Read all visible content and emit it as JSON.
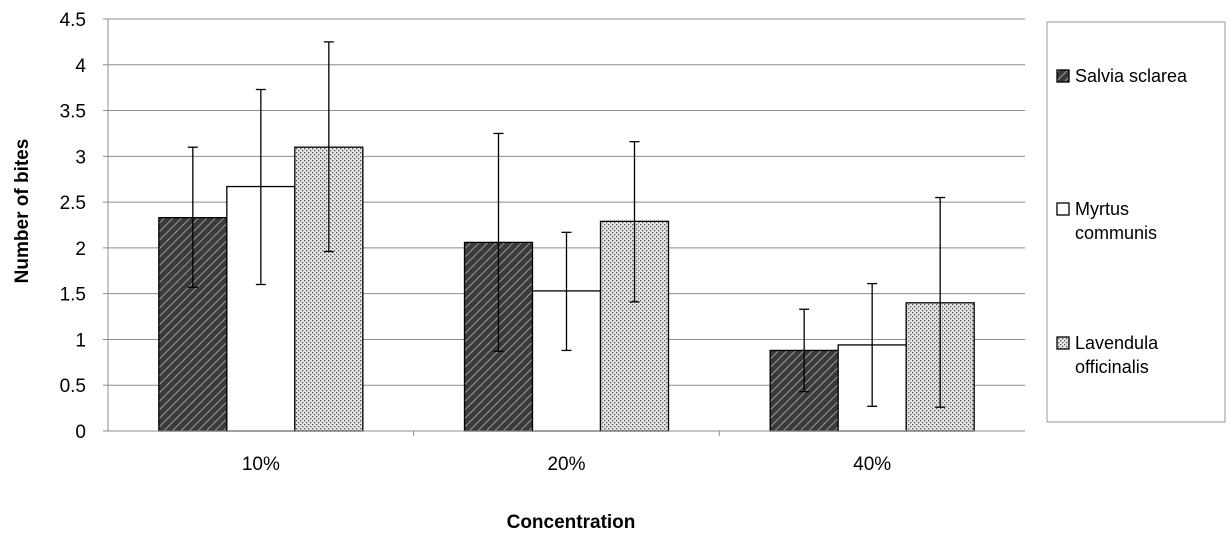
{
  "chart_data": {
    "type": "bar",
    "title": "",
    "xlabel": "Concentration",
    "ylabel": "Number of bites",
    "ylim": [
      0,
      4.5
    ],
    "yticks": [
      "0",
      "0.5",
      "1",
      "1.5",
      "2",
      "2.5",
      "3",
      "3.5",
      "4",
      "4.5"
    ],
    "categories": [
      "10%",
      "20%",
      "40%"
    ],
    "series": [
      {
        "name": "Salvia sclarea",
        "legend_lines": [
          "Salvia sclarea"
        ],
        "pattern": "diagonal-dark",
        "values": [
          2.33,
          2.06,
          0.88
        ],
        "error_low": [
          1.57,
          0.87,
          0.43
        ],
        "error_high": [
          3.1,
          3.25,
          1.33
        ]
      },
      {
        "name": "Myrtus communis",
        "legend_lines": [
          "Myrtus",
          "communis"
        ],
        "pattern": "white",
        "values": [
          2.67,
          1.53,
          0.94
        ],
        "error_low": [
          1.6,
          0.88,
          0.27
        ],
        "error_high": [
          3.73,
          2.17,
          1.61
        ]
      },
      {
        "name": "Lavendula officinalis",
        "legend_lines": [
          "Lavendula",
          "officinalis"
        ],
        "pattern": "dotted",
        "values": [
          3.1,
          2.29,
          1.4
        ],
        "error_low": [
          1.96,
          1.41,
          0.26
        ],
        "error_high": [
          4.25,
          3.16,
          2.55
        ]
      }
    ],
    "grid": true,
    "legend_position": "right"
  }
}
